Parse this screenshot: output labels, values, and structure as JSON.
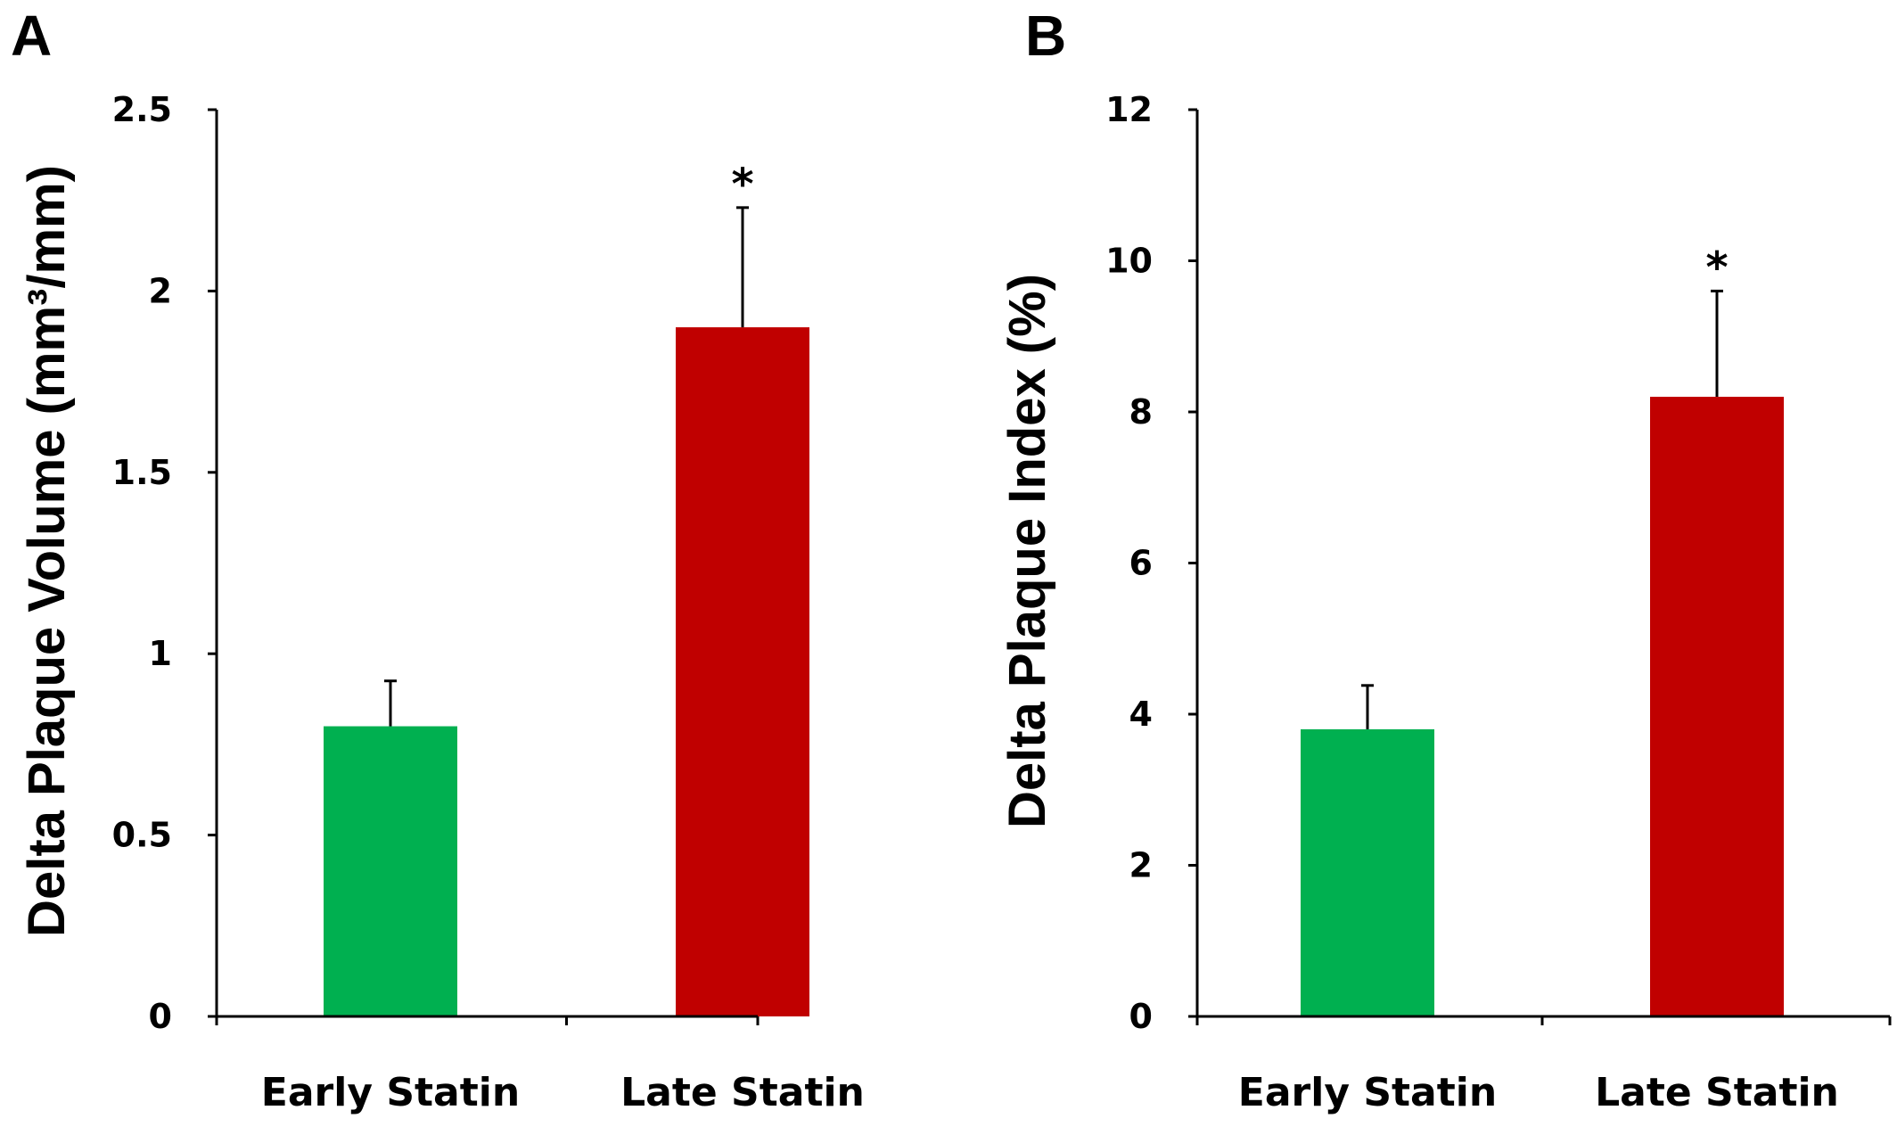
{
  "chart_data": [
    {
      "type": "bar",
      "panel": "A",
      "categories": [
        "Early Statin",
        "Late Statin"
      ],
      "values": [
        0.8,
        1.9
      ],
      "errors": [
        0.125,
        0.33
      ],
      "significance": [
        "",
        "*"
      ],
      "colors": [
        "#00b050",
        "#c00000"
      ],
      "ylabel": "Delta Plaque Volume (mm³/mm)",
      "ylim": [
        0,
        2.5
      ],
      "yticks": [
        0,
        0.5,
        1,
        1.5,
        2,
        2.5
      ],
      "ytick_labels": [
        "0",
        "0.5",
        "1",
        "1.5",
        "2",
        "2.5"
      ],
      "grid": false
    },
    {
      "type": "bar",
      "panel": "B",
      "categories": [
        "Early Statin",
        "Late Statin"
      ],
      "values": [
        3.8,
        8.2
      ],
      "errors": [
        0.58,
        1.4
      ],
      "significance": [
        "",
        "*"
      ],
      "colors": [
        "#00b050",
        "#c00000"
      ],
      "ylabel": "Delta Plaque Index (%)",
      "ylim": [
        0,
        12
      ],
      "yticks": [
        0,
        2,
        4,
        6,
        8,
        10,
        12
      ],
      "ytick_labels": [
        "0",
        "2",
        "4",
        "6",
        "8",
        "10",
        "12"
      ],
      "grid": false
    }
  ]
}
